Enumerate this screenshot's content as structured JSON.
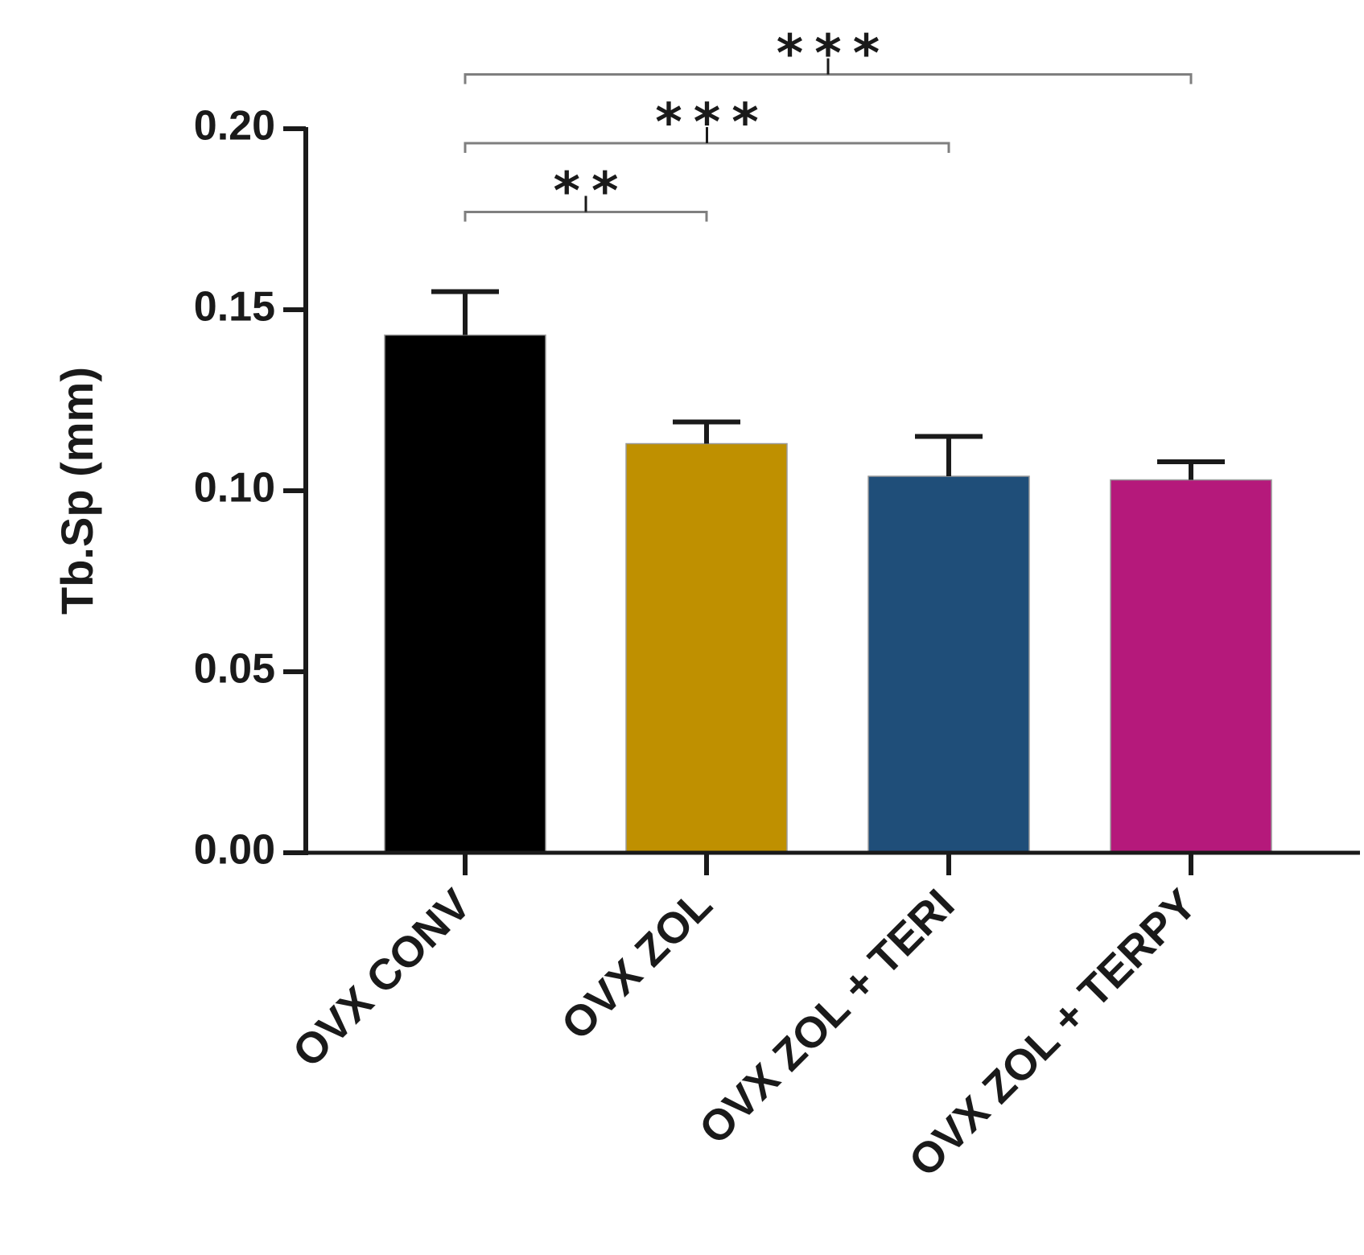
{
  "chart_data": {
    "type": "bar",
    "title": "",
    "xlabel": "",
    "ylabel": "Tb.Sp (mm)",
    "ylim": [
      0,
      0.2
    ],
    "yticks": [
      "0.00",
      "0.05",
      "0.10",
      "0.15",
      "0.20"
    ],
    "grid": false,
    "categories": [
      "OVX CONV",
      "OVX ZOL",
      "OVX ZOL + TERI",
      "OVX ZOL + TERPY"
    ],
    "values": [
      0.143,
      0.113,
      0.104,
      0.103
    ],
    "errors": [
      0.012,
      0.006,
      0.011,
      0.005
    ],
    "colors": [
      "#000000",
      "#bf9000",
      "#1f4e79",
      "#b5197b"
    ],
    "significance": [
      {
        "from": 0,
        "to": 1,
        "label": "**",
        "level": 0.177
      },
      {
        "from": 0,
        "to": 2,
        "label": "***",
        "level": 0.196
      },
      {
        "from": 0,
        "to": 3,
        "label": "***",
        "level": 0.215
      }
    ]
  }
}
